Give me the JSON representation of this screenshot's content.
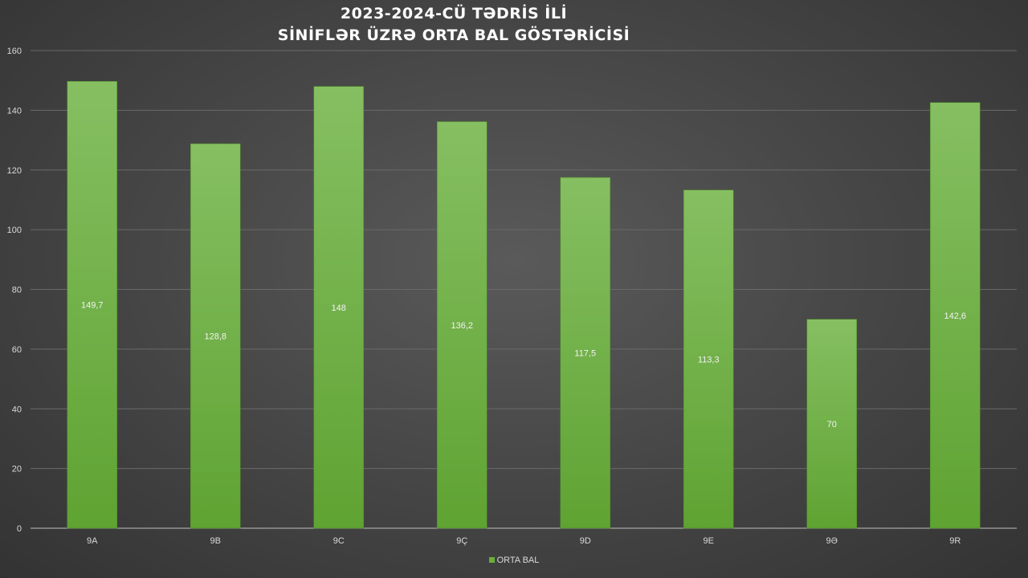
{
  "chart_data": {
    "type": "bar",
    "title": "2023-2024-CÜ TƏDRİS İLİ",
    "subtitle": "SİNİFLƏR ÜZRƏ ORTA BAL GÖSTƏRİCİSİ",
    "categories": [
      "9A",
      "9B",
      "9C",
      "9Ç",
      "9D",
      "9E",
      "9Ə",
      "9R"
    ],
    "series": [
      {
        "name": "ORTA BAL",
        "values": [
          149.7,
          128.8,
          148,
          136.2,
          117.5,
          113.3,
          70,
          142.6
        ],
        "labels": [
          "149,7",
          "128,8",
          "148",
          "136,2",
          "117,5",
          "113,3",
          "70",
          "142,6"
        ]
      }
    ],
    "ylim": [
      0,
      160
    ],
    "yticks": [
      "0",
      "20",
      "40",
      "60",
      "80",
      "100",
      "120",
      "140",
      "160"
    ],
    "grid": true,
    "legend_position": "bottom",
    "bar_color": "#6aae3c",
    "bar_color_top": "#86bf62"
  }
}
